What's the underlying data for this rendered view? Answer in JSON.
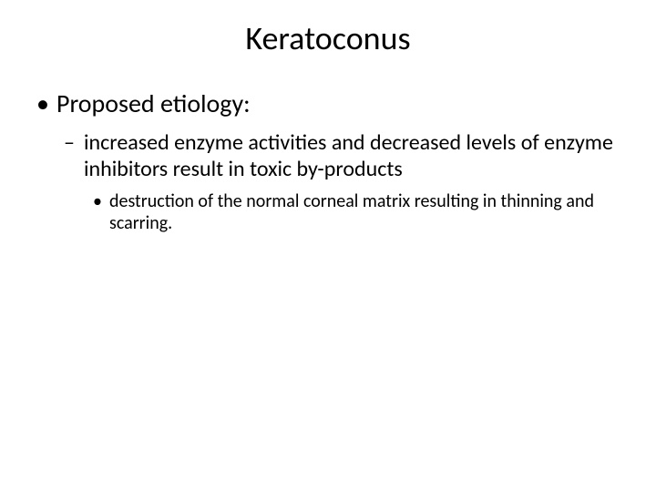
{
  "slide": {
    "title": "Keratoconus",
    "bullets": {
      "l1": "Proposed etiology:",
      "l2": "increased enzyme activities and decreased levels of enzyme inhibitors result in toxic by-products",
      "l3": "destruction of the normal corneal matrix resulting in thinning and scarring."
    }
  },
  "style": {
    "background": "#ffffff",
    "text_color": "#000000",
    "title_fontsize": 36,
    "level1_fontsize": 28,
    "level2_fontsize": 24,
    "level3_fontsize": 20,
    "font_family": "Calibri"
  }
}
